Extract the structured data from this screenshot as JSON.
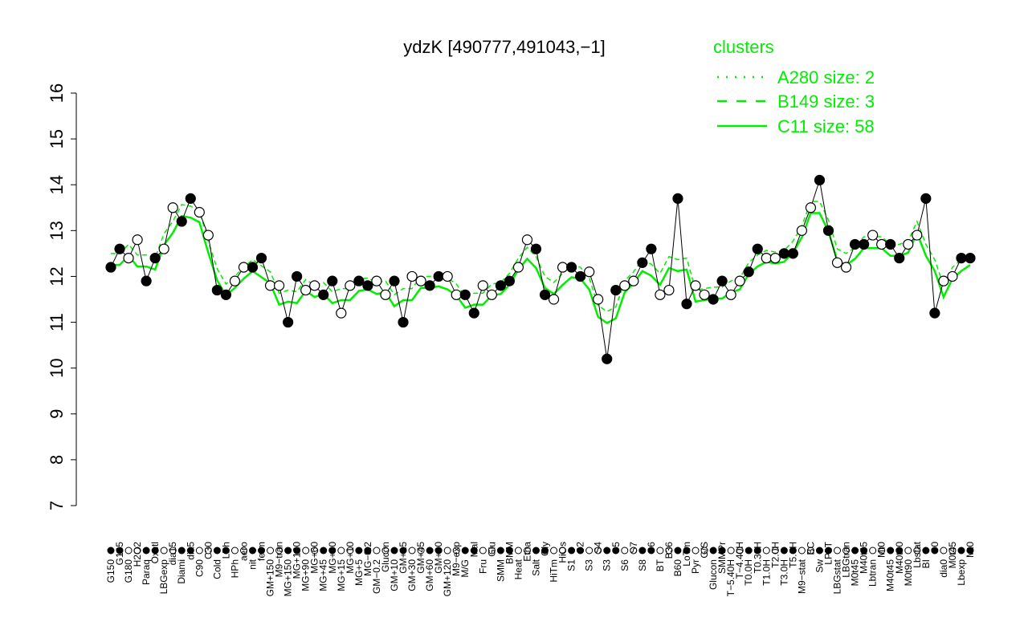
{
  "chart_data": {
    "type": "line",
    "title": "ydzK [490777,491043,−1]",
    "xlabel": "",
    "ylabel": "",
    "ylim": [
      7,
      16
    ],
    "yticks": [
      7,
      8,
      9,
      10,
      11,
      12,
      13,
      14,
      15,
      16
    ],
    "grid": false,
    "legend": {
      "title": "clusters",
      "placement": "top-right",
      "entries": [
        {
          "name": "A280 size: 2",
          "style": "dotted"
        },
        {
          "name": "B149 size: 3",
          "style": "dashed"
        },
        {
          "name": "C11 size: 58",
          "style": "solid"
        }
      ]
    },
    "colors": {
      "series": "#00ee00",
      "points_filled": "#000000",
      "points_open": "#ffffff",
      "legend_text": "#00ee00"
    },
    "categories": [
      "G150",
      "G135",
      "G180",
      "H2O2",
      "Paraq",
      "Oxctl",
      "LBGexp",
      "dia15",
      "Diami",
      "dia5",
      "C90",
      "C30",
      "Cold",
      "LPh",
      "HPh",
      "aero",
      "nit",
      "ferm",
      "GM+150",
      "M9−tran",
      "MG+150",
      "MG+120",
      "MG+90",
      "MG+60",
      "MG+45",
      "MG+30",
      "MG+15",
      "MG+10",
      "MG+5",
      "MG−0.2",
      "GM−0.2",
      "Glucon",
      "GM+10",
      "GM+15",
      "GM+30",
      "GM+45",
      "GM+60",
      "GM+90",
      "GM+120",
      "M9−exp",
      "M/G",
      "Mal",
      "Fru",
      "Glu",
      "SMM",
      "BMM",
      "Heat",
      "Etha",
      "Salt",
      "Gly",
      "HiTm",
      "HiOs",
      "S1",
      "S2",
      "S3",
      "S4",
      "S3",
      "S5",
      "S6",
      "S7",
      "S8",
      "S6",
      "BT",
      "B36",
      "B60",
      "LoTm",
      "Pyr",
      "G/S",
      "Glucon",
      "SMMPr",
      "T−5.40H",
      "T−4.40H",
      "T0.0H",
      "T0.30H",
      "T1.0H",
      "T2.0H",
      "T3.0H",
      "T5.0H",
      "M9−stat",
      "BC",
      "Sw",
      "LPhT",
      "LBGstat",
      "LBGtran",
      "M0t45",
      "M40t45",
      "Lbtran",
      "Mt0",
      "M40t45",
      "M40t90",
      "M0t90",
      "Lbstat",
      "BI",
      "S0",
      "dia0",
      "M0t45",
      "Lbexp",
      "Mt0"
    ],
    "values": [
      12.2,
      12.6,
      12.4,
      12.8,
      11.9,
      12.4,
      12.6,
      13.5,
      13.2,
      13.7,
      13.4,
      12.9,
      11.7,
      11.6,
      11.9,
      12.2,
      12.2,
      12.4,
      11.8,
      11.8,
      11.0,
      12.0,
      11.7,
      11.8,
      11.6,
      11.9,
      11.2,
      11.8,
      11.9,
      11.8,
      11.9,
      11.6,
      11.9,
      11.0,
      12.0,
      11.9,
      11.8,
      12.0,
      12.0,
      11.6,
      11.6,
      11.2,
      11.8,
      11.6,
      11.8,
      11.9,
      12.2,
      12.8,
      12.6,
      11.6,
      11.5,
      12.2,
      12.2,
      12.0,
      12.1,
      11.5,
      10.2,
      11.7,
      11.8,
      11.9,
      12.3,
      12.6,
      11.6,
      11.7,
      13.7,
      11.4,
      11.8,
      11.6,
      11.5,
      11.9,
      11.6,
      11.9,
      12.1,
      12.6,
      12.4,
      12.4,
      12.5,
      12.5,
      13.0,
      13.5,
      14.1,
      13.0,
      12.3,
      12.2,
      12.7,
      12.7,
      12.9,
      12.7,
      12.7,
      12.4,
      12.7,
      12.9,
      13.7,
      11.2,
      11.9,
      12.0,
      12.4,
      12.4
    ]
  }
}
